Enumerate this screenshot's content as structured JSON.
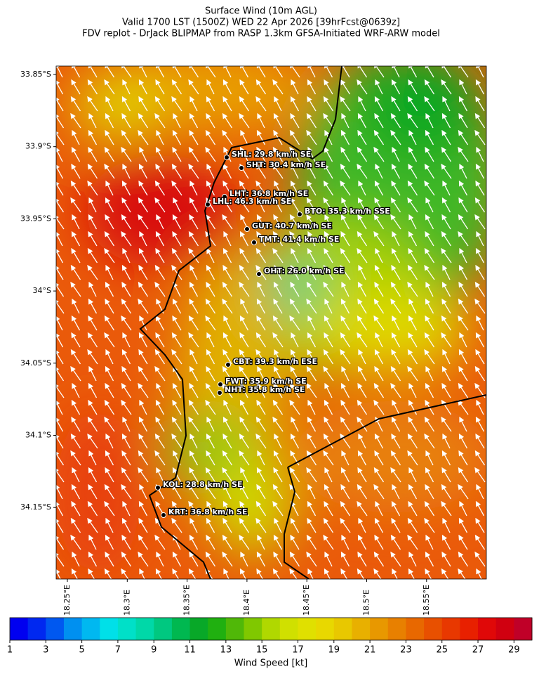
{
  "header": {
    "title": [
      "Surface Wind (10m AGL)",
      "Valid 1700 LST (1500Z) WED 22 Apr 2026 [39hrFcst@0639z]",
      "FDV replot - DrJack BLIPMAP from RASP 1.3km GFSA-Initiated WRF-ARW model"
    ]
  },
  "map": {
    "lat_ticks": [
      "33.85°S",
      "33.9°S",
      "33.95°S",
      "34°S",
      "34.05°S",
      "34.1°S",
      "34.15°S"
    ],
    "lon_ticks": [
      "18.25°E",
      "18.3°E",
      "18.35°E",
      "18.4°E",
      "18.45°E",
      "18.5°E",
      "18.55°E"
    ],
    "stations": [
      "SHL: 29.8 km/h SE",
      "SHT: 30.4 km/h SE",
      "LHT: 36.8 km/h SE",
      "LHL: 46.3 km/h SE",
      "BTO: 35.3 km/h SSE",
      "GUT: 40.7 km/h SE",
      "TMT: 41.4 km/h SE",
      "OHT: 26.0 km/h SE",
      "CBT: 39.3 km/h ESE",
      "FWT: 35.9 km/h SE",
      "NHT: 35.8 km/h SE",
      "KOL: 28.8 km/h SE",
      "KRT: 36.8 km/h SE"
    ]
  },
  "colorbar": {
    "label": "Wind Speed [kt]",
    "range": [
      1,
      30
    ],
    "ticks": [
      1,
      3,
      5,
      7,
      9,
      11,
      13,
      15,
      17,
      19,
      21,
      23,
      25,
      27,
      29
    ],
    "colors": [
      "#0000f0",
      "#0028f0",
      "#0058f0",
      "#0090f0",
      "#00b8f0",
      "#00e0e8",
      "#00e0c8",
      "#00d8a8",
      "#00c880",
      "#00b850",
      "#08a828",
      "#20b010",
      "#50b808",
      "#80c800",
      "#b0d800",
      "#d0e000",
      "#e0e000",
      "#e8d800",
      "#e8c800",
      "#e8b000",
      "#e89800",
      "#e88000",
      "#e86800",
      "#e85000",
      "#e83800",
      "#e82000",
      "#e00808",
      "#d00010",
      "#c00028"
    ]
  }
}
